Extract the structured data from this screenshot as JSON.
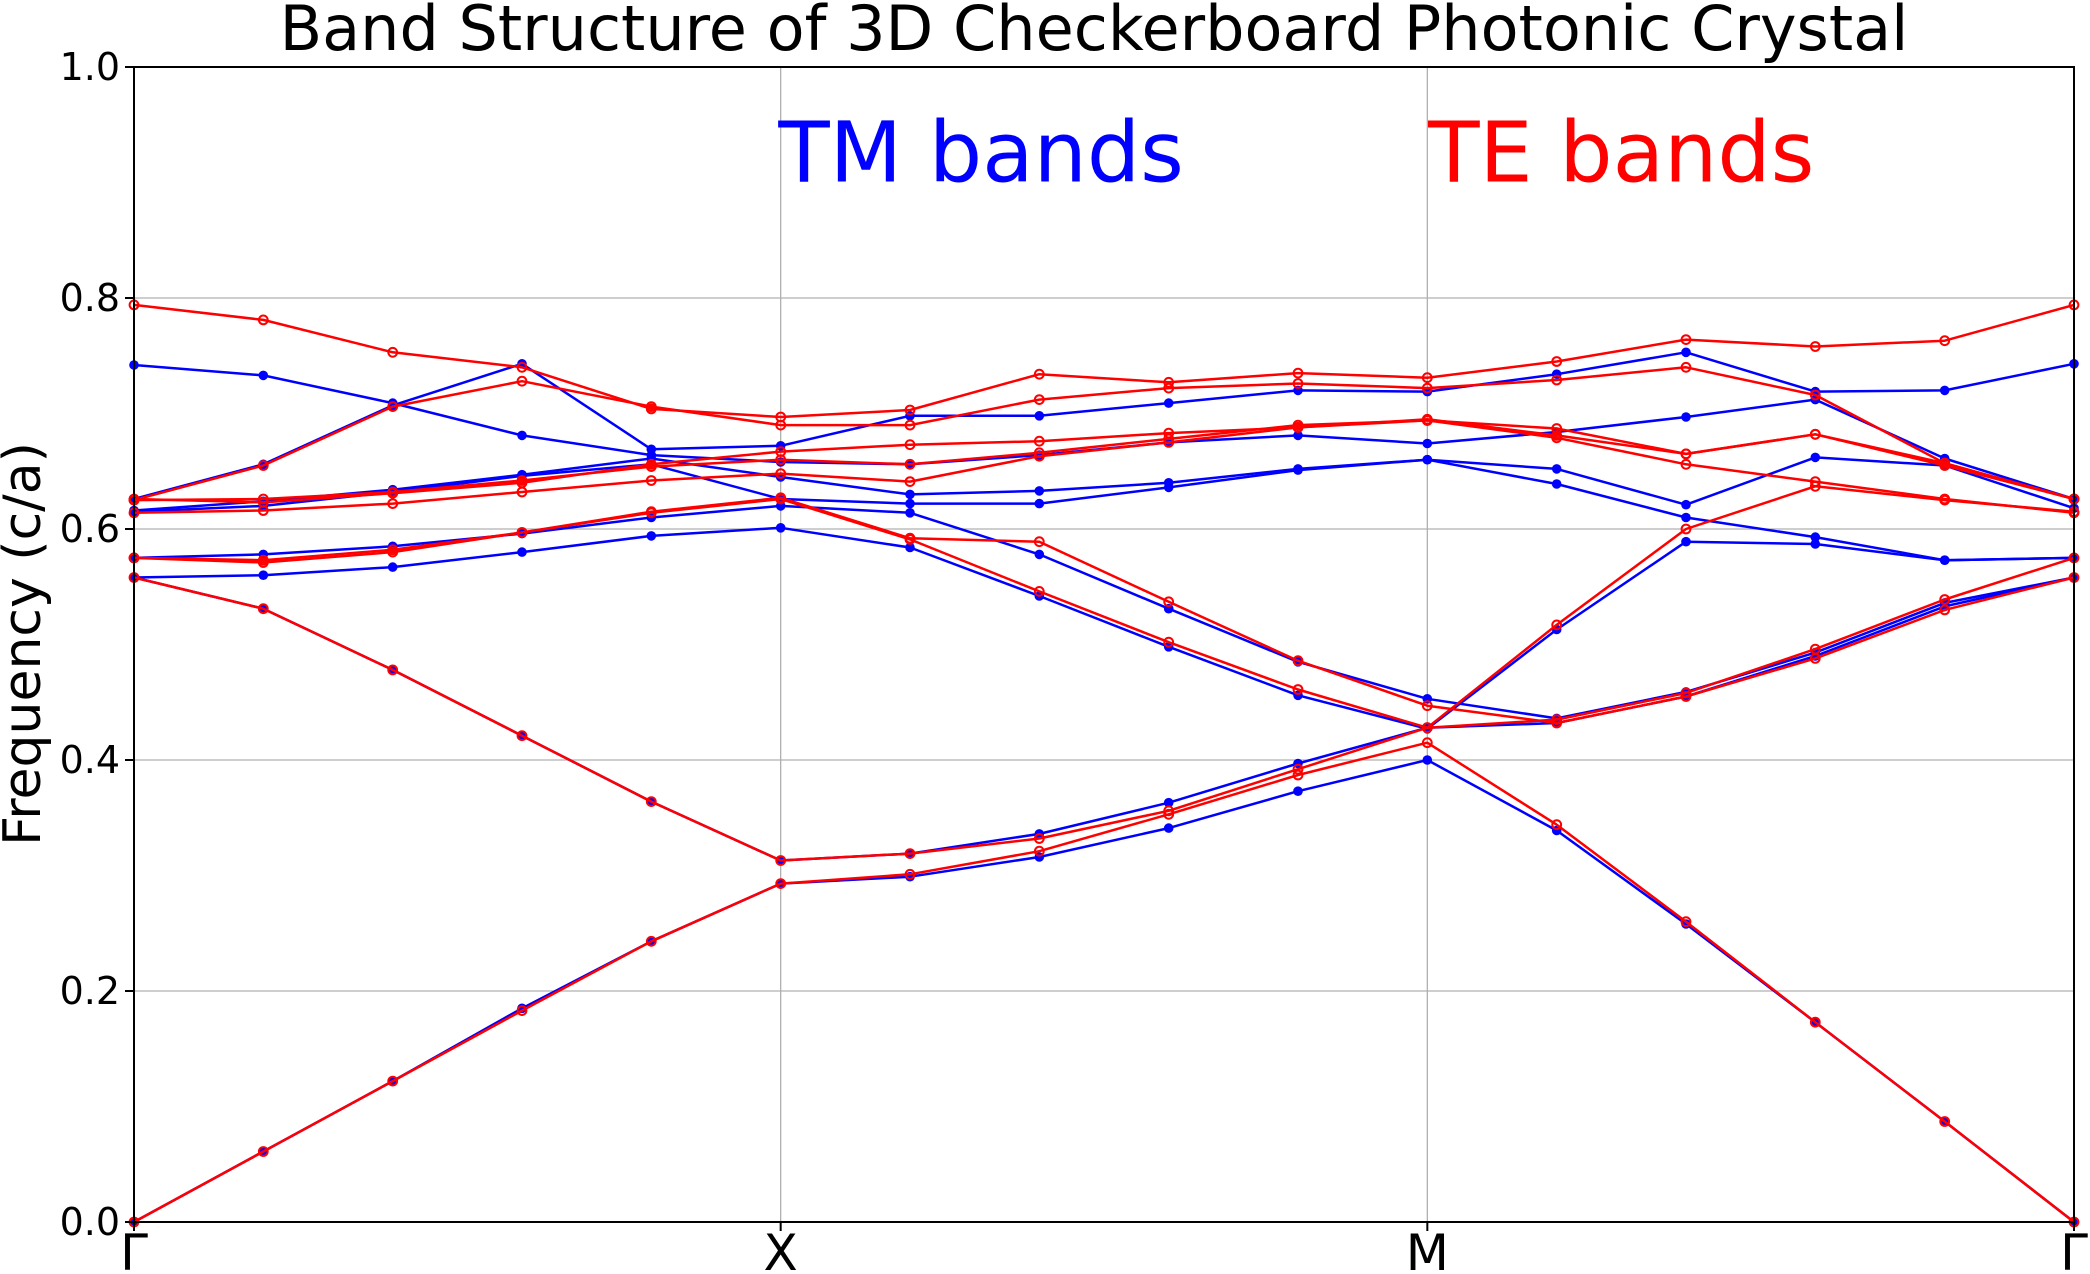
{
  "chart_data": {
    "type": "line",
    "title": "Band Structure of 3D Checkerboard Photonic Crystal",
    "xlabel": "",
    "ylabel": "Frequency (c/a)",
    "ylim": [
      0,
      1.0
    ],
    "xlim": [
      0,
      15
    ],
    "grid": true,
    "yticks": [
      "0.0",
      "0.2",
      "0.4",
      "0.6",
      "0.8",
      "1.0"
    ],
    "xticks": [
      {
        "pos": 0,
        "label": "Γ"
      },
      {
        "pos": 5,
        "label": "X"
      },
      {
        "pos": 10,
        "label": "M"
      },
      {
        "pos": 15,
        "label": "Γ"
      }
    ],
    "x": [
      0,
      1,
      2,
      3,
      4,
      5,
      6,
      7,
      8,
      9,
      10,
      11,
      12,
      13,
      14,
      15
    ],
    "annotations": [
      {
        "text": "TM bands",
        "color": "#0000ff",
        "x": 6.55,
        "y": 0.925
      },
      {
        "text": "TE bands",
        "color": "#ff0000",
        "x": 11.5,
        "y": 0.925
      }
    ],
    "series": [
      {
        "group": "TM",
        "color": "#0000ff",
        "values": [
          0.0,
          0.061,
          0.122,
          0.185,
          0.243,
          0.293,
          0.299,
          0.316,
          0.341,
          0.373,
          0.4,
          0.339,
          0.258,
          0.173,
          0.087,
          0.0
        ]
      },
      {
        "group": "TM",
        "color": "#0000ff",
        "values": [
          0.558,
          0.531,
          0.478,
          0.421,
          0.364,
          0.313,
          0.319,
          0.336,
          0.363,
          0.397,
          0.428,
          0.432,
          0.455,
          0.49,
          0.533,
          0.558
        ]
      },
      {
        "group": "TM",
        "color": "#0000ff",
        "values": [
          0.558,
          0.56,
          0.567,
          0.58,
          0.594,
          0.601,
          0.584,
          0.542,
          0.498,
          0.456,
          0.427,
          0.513,
          0.589,
          0.587,
          0.573,
          0.575
        ]
      },
      {
        "group": "TM",
        "color": "#0000ff",
        "values": [
          0.575,
          0.578,
          0.585,
          0.596,
          0.61,
          0.62,
          0.614,
          0.578,
          0.531,
          0.485,
          0.453,
          0.436,
          0.459,
          0.493,
          0.536,
          0.558
        ]
      },
      {
        "group": "TM",
        "color": "#0000ff",
        "values": [
          0.615,
          0.62,
          0.632,
          0.646,
          0.656,
          0.626,
          0.622,
          0.622,
          0.636,
          0.651,
          0.66,
          0.639,
          0.61,
          0.593,
          0.573,
          0.575
        ]
      },
      {
        "group": "TM",
        "color": "#0000ff",
        "values": [
          0.616,
          0.624,
          0.634,
          0.647,
          0.661,
          0.645,
          0.63,
          0.633,
          0.64,
          0.652,
          0.66,
          0.652,
          0.621,
          0.662,
          0.655,
          0.618
        ]
      },
      {
        "group": "TM",
        "color": "#0000ff",
        "values": [
          0.626,
          0.656,
          0.707,
          0.743,
          0.669,
          0.672,
          0.698,
          0.698,
          0.709,
          0.72,
          0.719,
          0.734,
          0.753,
          0.719,
          0.72,
          0.743
        ]
      },
      {
        "group": "TM",
        "color": "#0000ff",
        "values": [
          0.742,
          0.733,
          0.709,
          0.681,
          0.664,
          0.658,
          0.656,
          0.664,
          0.675,
          0.681,
          0.674,
          0.684,
          0.697,
          0.712,
          0.661,
          0.626
        ]
      },
      {
        "group": "TE",
        "color": "#ff0000",
        "values": [
          0.0,
          0.061,
          0.122,
          0.183,
          0.243,
          0.293,
          0.301,
          0.321,
          0.353,
          0.387,
          0.415,
          0.344,
          0.26,
          0.173,
          0.087,
          0.0
        ]
      },
      {
        "group": "TE",
        "color": "#ff0000",
        "values": [
          0.558,
          0.531,
          0.478,
          0.421,
          0.364,
          0.313,
          0.319,
          0.332,
          0.356,
          0.392,
          0.428,
          0.435,
          0.458,
          0.496,
          0.539,
          0.575
        ]
      },
      {
        "group": "TE",
        "color": "#ff0000",
        "values": [
          0.575,
          0.571,
          0.58,
          0.597,
          0.614,
          0.626,
          0.591,
          0.546,
          0.502,
          0.461,
          0.428,
          0.517,
          0.6,
          0.637,
          0.625,
          0.615
        ]
      },
      {
        "group": "TE",
        "color": "#ff0000",
        "values": [
          0.575,
          0.573,
          0.582,
          0.597,
          0.615,
          0.627,
          0.592,
          0.589,
          0.537,
          0.486,
          0.447,
          0.432,
          0.455,
          0.488,
          0.53,
          0.558
        ]
      },
      {
        "group": "TE",
        "color": "#ff0000",
        "values": [
          0.614,
          0.616,
          0.622,
          0.632,
          0.642,
          0.648,
          0.641,
          0.663,
          0.675,
          0.688,
          0.694,
          0.679,
          0.656,
          0.641,
          0.626,
          0.614
        ]
      },
      {
        "group": "TE",
        "color": "#ff0000",
        "values": [
          0.625,
          0.626,
          0.632,
          0.642,
          0.654,
          0.66,
          0.656,
          0.666,
          0.678,
          0.69,
          0.694,
          0.687,
          0.665,
          0.682,
          0.655,
          0.626
        ]
      },
      {
        "group": "TE",
        "color": "#ff0000",
        "values": [
          0.625,
          0.655,
          0.706,
          0.728,
          0.706,
          0.69,
          0.69,
          0.712,
          0.722,
          0.726,
          0.722,
          0.729,
          0.74,
          0.716,
          0.657,
          0.626
        ]
      },
      {
        "group": "TE",
        "color": "#ff0000",
        "values": [
          0.794,
          0.781,
          0.753,
          0.74,
          0.704,
          0.697,
          0.703,
          0.734,
          0.727,
          0.735,
          0.731,
          0.745,
          0.764,
          0.758,
          0.763,
          0.794
        ]
      },
      {
        "group": "TE",
        "color": "#ff0000",
        "values": [
          0.626,
          0.623,
          0.631,
          0.64,
          0.656,
          0.667,
          0.673,
          0.676,
          0.683,
          0.688,
          0.695,
          0.681,
          0.665,
          0.682,
          0.657,
          0.626
        ]
      }
    ]
  }
}
